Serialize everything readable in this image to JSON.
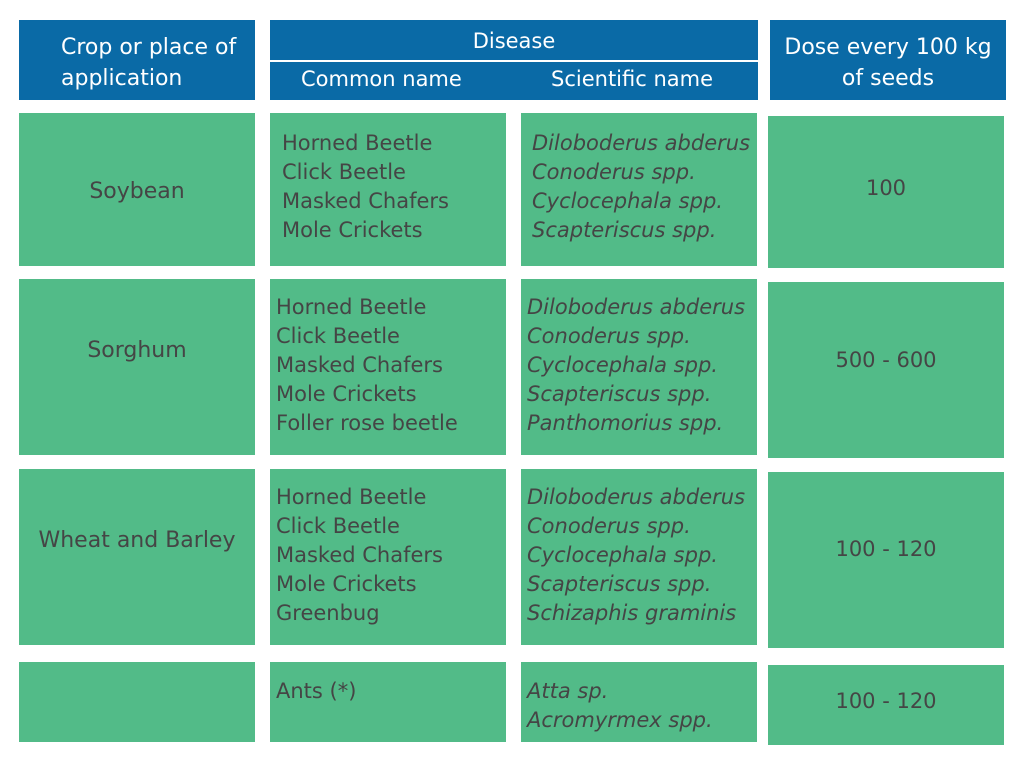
{
  "header": {
    "crop": [
      "Crop or place of",
      "application"
    ],
    "disease": "Disease",
    "common_name": "Common name",
    "scientific_name": "Scientific name",
    "dose": [
      "Dose every 100 kg",
      "of seeds"
    ]
  },
  "rows": [
    {
      "crop": "Soybean",
      "common": [
        "Horned Beetle",
        "Click Beetle",
        "Masked Chafers",
        "Mole Crickets"
      ],
      "scientific": [
        "Diloboderus abderus",
        "Conoderus spp.",
        "Cyclocephala spp.",
        "Scapteriscus spp."
      ],
      "dose": "100"
    },
    {
      "crop": "Sorghum",
      "common": [
        "Horned Beetle",
        "Click Beetle",
        "Masked Chafers",
        "Mole Crickets",
        "Foller rose beetle"
      ],
      "scientific": [
        "Diloboderus abderus",
        "Conoderus spp.",
        "Cyclocephala spp.",
        "Scapteriscus spp.",
        "Panthomorius spp."
      ],
      "dose": "500 - 600"
    },
    {
      "crop": "Wheat and Barley",
      "common": [
        "Horned Beetle",
        "Click Beetle",
        "Masked Chafers",
        "Mole Crickets",
        "Greenbug"
      ],
      "scientific": [
        "Diloboderus abderus",
        "Conoderus spp.",
        "Cyclocephala spp.",
        "Scapteriscus spp.",
        "Schizaphis graminis"
      ],
      "dose": "100 - 120"
    },
    {
      "crop": "",
      "common": [
        "Ants (*)"
      ],
      "scientific": [
        "Atta sp.",
        "Acromyrmex spp."
      ],
      "dose": "100 - 120"
    }
  ]
}
